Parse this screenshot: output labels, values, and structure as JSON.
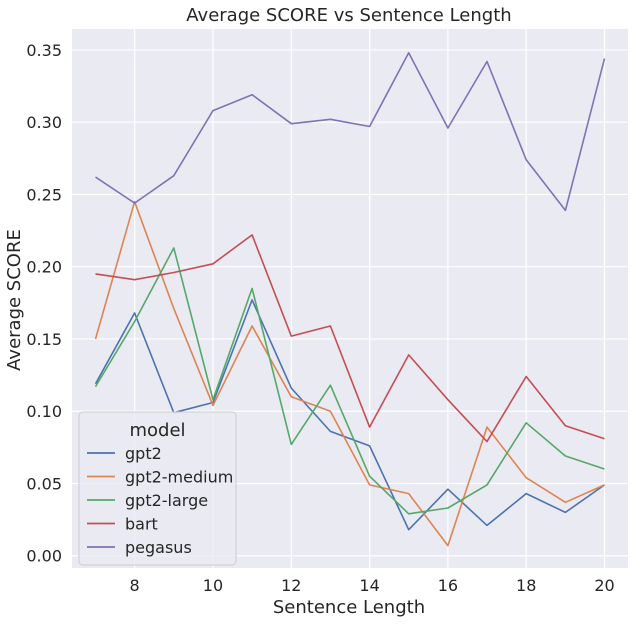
{
  "chart_data": {
    "type": "line",
    "title": "Average SCORE vs Sentence Length",
    "xlabel": "Sentence Length",
    "ylabel": "Average SCORE",
    "x": [
      7,
      8,
      9,
      10,
      11,
      12,
      13,
      14,
      15,
      16,
      17,
      18,
      19,
      20
    ],
    "xlim": [
      6.4,
      20.6
    ],
    "ylim": [
      -0.0085,
      0.3645
    ],
    "xticks": [
      8,
      10,
      12,
      14,
      16,
      18,
      20
    ],
    "xtick_labels": [
      "8",
      "10",
      "12",
      "14",
      "16",
      "18",
      "20"
    ],
    "yticks": [
      0.0,
      0.05,
      0.1,
      0.15,
      0.2,
      0.25,
      0.3,
      0.35
    ],
    "ytick_labels": [
      "0.00",
      "0.05",
      "0.10",
      "0.15",
      "0.20",
      "0.25",
      "0.30",
      "0.35"
    ],
    "grid": true,
    "background": "#EAEAF2",
    "legend": {
      "title": "model",
      "placement": "lower-left"
    },
    "series": [
      {
        "name": "gpt2",
        "color": "#4C72B0",
        "values": [
          0.119,
          0.168,
          0.099,
          0.106,
          0.177,
          0.116,
          0.086,
          0.076,
          0.018,
          0.046,
          0.021,
          0.043,
          0.03,
          0.049
        ]
      },
      {
        "name": "gpt2-medium",
        "color": "#DD8452",
        "values": [
          0.15,
          0.245,
          0.171,
          0.104,
          0.159,
          0.11,
          0.1,
          0.049,
          0.043,
          0.007,
          0.089,
          0.054,
          0.037,
          0.049
        ]
      },
      {
        "name": "gpt2-large",
        "color": "#55A868",
        "values": [
          0.117,
          0.162,
          0.213,
          0.108,
          0.185,
          0.077,
          0.118,
          0.055,
          0.029,
          0.033,
          0.049,
          0.092,
          0.069,
          0.06
        ]
      },
      {
        "name": "bart",
        "color": "#C44E52",
        "values": [
          0.195,
          0.191,
          0.196,
          0.202,
          0.222,
          0.152,
          0.159,
          0.089,
          0.139,
          0.108,
          0.079,
          0.124,
          0.09,
          0.081
        ]
      },
      {
        "name": "pegasus",
        "color": "#8172B3",
        "values": [
          0.262,
          0.244,
          0.263,
          0.308,
          0.319,
          0.299,
          0.302,
          0.297,
          0.348,
          0.296,
          0.342,
          0.274,
          0.239,
          0.344
        ]
      }
    ]
  }
}
